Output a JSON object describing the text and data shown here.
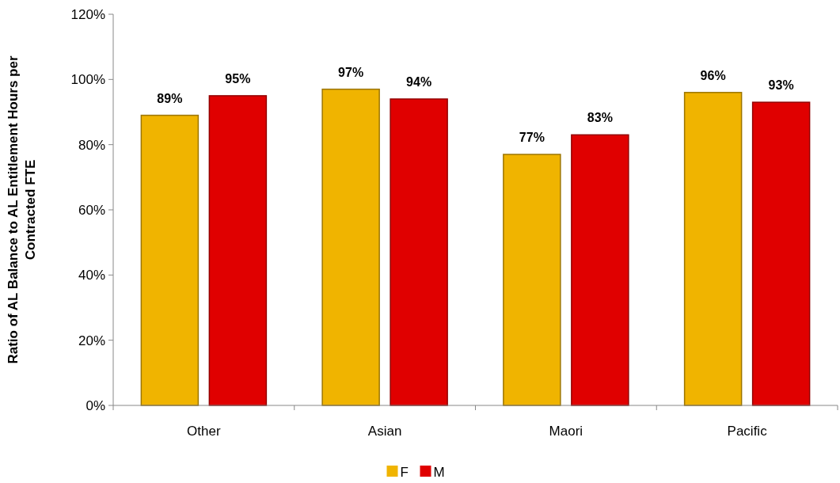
{
  "chart_data": {
    "type": "bar",
    "ylabel": "Ratio of AL Balance to AL Entitlement Hours per Contracted FTE",
    "categories": [
      "Other",
      "Asian",
      "Maori",
      "Pacific"
    ],
    "series": [
      {
        "name": "F",
        "color": "#f0b400",
        "values": [
          89,
          97,
          77,
          96
        ],
        "value_labels": [
          "89%",
          "97%",
          "77%",
          "96%"
        ]
      },
      {
        "name": "M",
        "color": "#e00000",
        "values": [
          95,
          94,
          83,
          93
        ],
        "value_labels": [
          "95%",
          "94%",
          "83%",
          "93%"
        ]
      }
    ],
    "ylim": [
      0,
      120
    ],
    "yticks": [
      {
        "value": 0,
        "label": "0%"
      },
      {
        "value": 20,
        "label": "20%"
      },
      {
        "value": 40,
        "label": "40%"
      },
      {
        "value": 60,
        "label": "60%"
      },
      {
        "value": 80,
        "label": "80%"
      },
      {
        "value": 100,
        "label": "100%"
      },
      {
        "value": 120,
        "label": "120%"
      }
    ],
    "grid": false,
    "legend": "bottom"
  }
}
